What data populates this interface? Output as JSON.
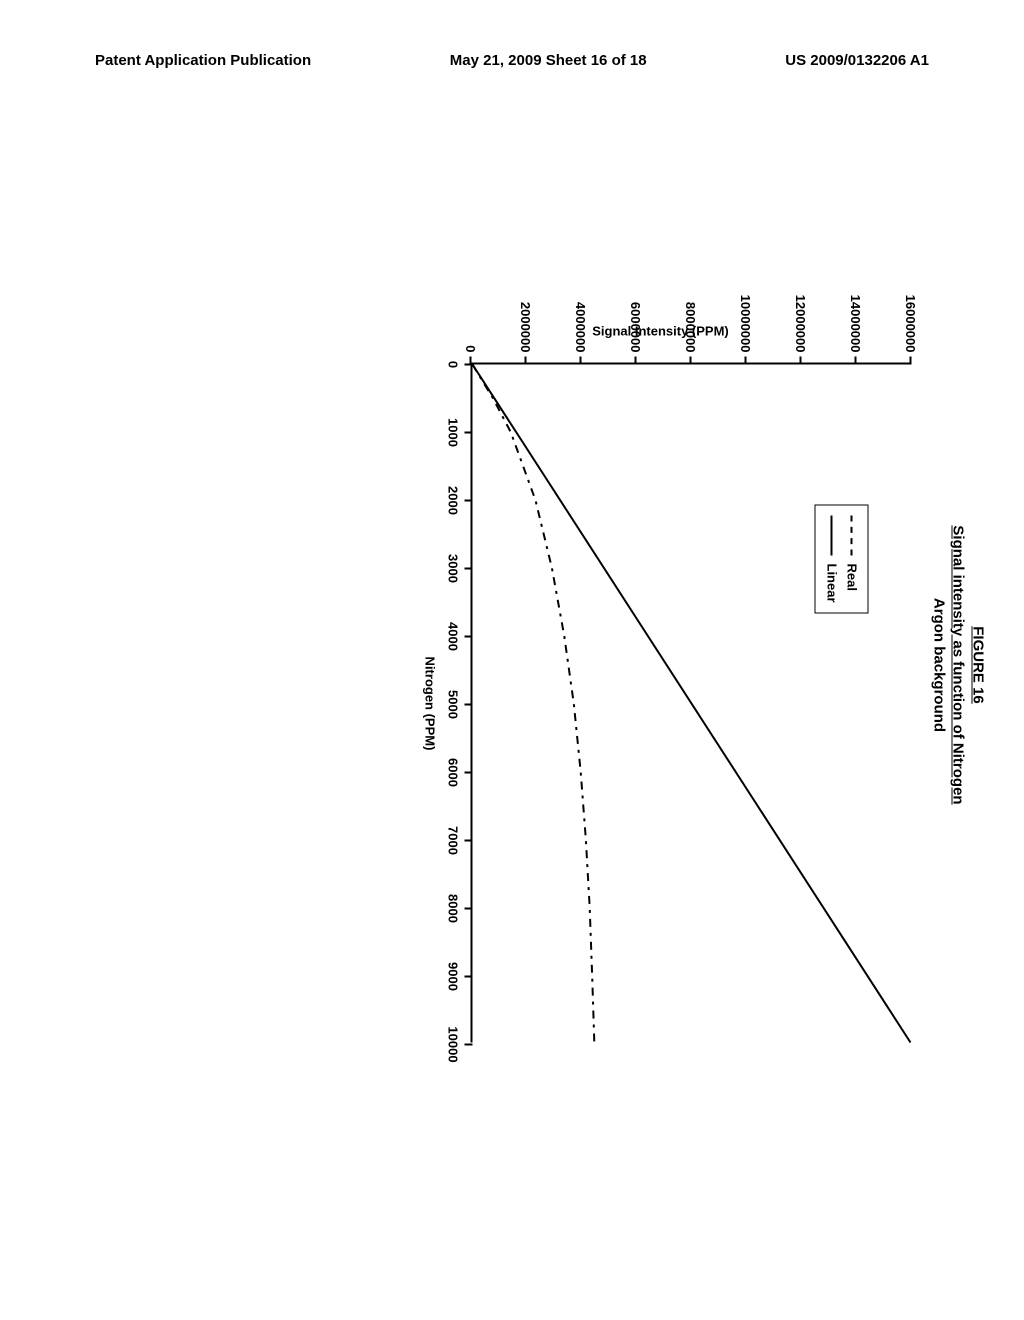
{
  "header": {
    "left": "Patent Application Publication",
    "center": "May 21, 2009  Sheet 16 of 18",
    "right": "US 2009/0132206 A1"
  },
  "figure": {
    "title_line1": "FIGURE 16",
    "title_line2": "Signal intensity as function of Nitrogen",
    "title_line3": "Argon background",
    "chart": {
      "type": "line",
      "xlabel": "Nitrogen (PPM)",
      "ylabel": "Signal Intensity (PPM)",
      "xlim": [
        0,
        10000
      ],
      "ylim": [
        0,
        16000000
      ],
      "xtick_step": 1000,
      "ytick_step": 2000000,
      "xticks": [
        0,
        1000,
        2000,
        3000,
        4000,
        5000,
        6000,
        7000,
        8000,
        9000,
        10000
      ],
      "yticks": [
        0,
        2000000,
        4000000,
        6000000,
        8000000,
        10000000,
        12000000,
        14000000,
        16000000
      ],
      "background_color": "#ffffff",
      "axis_color": "#000000",
      "line_color": "#000000",
      "line_width": 2,
      "series": [
        {
          "name": "Real",
          "style": "dashed",
          "points": [
            [
              0,
              0
            ],
            [
              500,
              750000
            ],
            [
              1000,
              1400000
            ],
            [
              2000,
              2300000
            ],
            [
              3000,
              2900000
            ],
            [
              4000,
              3350000
            ],
            [
              5000,
              3700000
            ],
            [
              6000,
              3950000
            ],
            [
              7000,
              4140000
            ],
            [
              8000,
              4280000
            ],
            [
              9000,
              4370000
            ],
            [
              10000,
              4450000
            ]
          ]
        },
        {
          "name": "Linear",
          "style": "solid",
          "points": [
            [
              0,
              0
            ],
            [
              10000,
              16000000
            ]
          ]
        }
      ],
      "legend": {
        "items": [
          "Real",
          "Linear"
        ],
        "position": "upper-left-inset"
      }
    }
  }
}
